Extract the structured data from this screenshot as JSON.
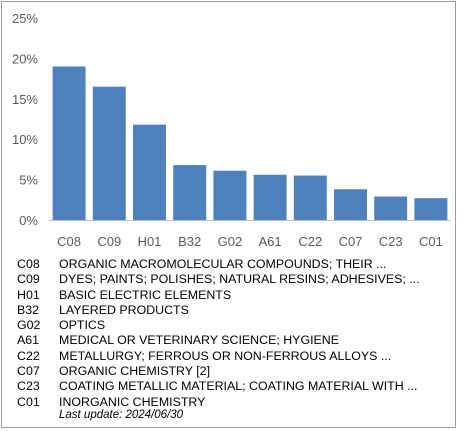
{
  "chart_data": {
    "type": "bar",
    "categories": [
      "C08",
      "C09",
      "H01",
      "B32",
      "G02",
      "A61",
      "C22",
      "C07",
      "C23",
      "C01"
    ],
    "values": [
      19.0,
      16.5,
      11.8,
      6.8,
      6.1,
      5.6,
      5.5,
      3.8,
      2.9,
      2.7
    ],
    "ylim": [
      0,
      25
    ],
    "yticks": [
      0,
      5,
      10,
      15,
      20,
      25
    ],
    "ytick_labels": [
      "0%",
      "5%",
      "10%",
      "15%",
      "20%",
      "25%"
    ],
    "bar_color": "#4f81bd",
    "grid": false,
    "legend": [
      {
        "code": "C08",
        "desc": "ORGANIC MACROMOLECULAR COMPOUNDS; THEIR ..."
      },
      {
        "code": "C09",
        "desc": "DYES; PAINTS; POLISHES; NATURAL RESINS; ADHESIVES; ..."
      },
      {
        "code": "H01",
        "desc": "BASIC ELECTRIC ELEMENTS"
      },
      {
        "code": "B32",
        "desc": "LAYERED PRODUCTS"
      },
      {
        "code": "G02",
        "desc": "OPTICS"
      },
      {
        "code": "A61",
        "desc": "MEDICAL OR VETERINARY SCIENCE; HYGIENE"
      },
      {
        "code": "C22",
        "desc": "METALLURGY; FERROUS OR NON-FERROUS ALLOYS ..."
      },
      {
        "code": "C07",
        "desc": "ORGANIC CHEMISTRY [2]"
      },
      {
        "code": "C23",
        "desc": "COATING METALLIC MATERIAL; COATING MATERIAL WITH ..."
      },
      {
        "code": "C01",
        "desc": "INORGANIC CHEMISTRY"
      }
    ]
  },
  "footer": {
    "last_update": "Last update:  2024/06/30"
  }
}
